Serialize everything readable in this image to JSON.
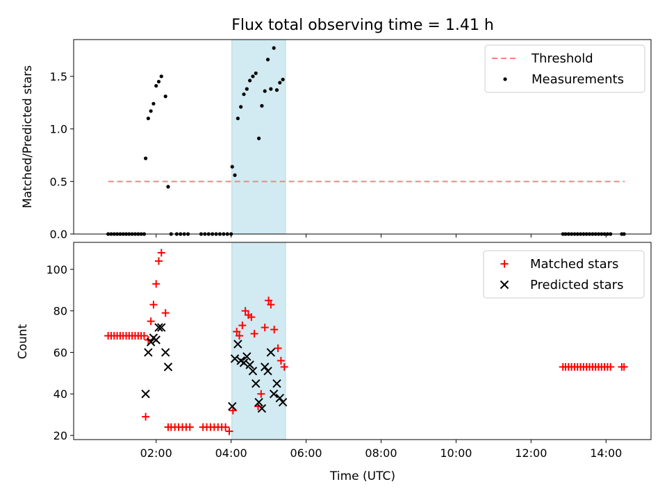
{
  "colors": {
    "threshold": "#ff7f7f",
    "measurements": "#000000",
    "matched": "#ff0000",
    "predicted": "#000000",
    "shade": "#add8e6"
  },
  "chart_data": [
    {
      "type": "scatter",
      "title": "Flux total observing time = 1.41 h",
      "ylabel": "Matched/Predicted stars",
      "ylim": [
        0,
        1.85
      ],
      "yticks": [
        0.0,
        0.5,
        1.0,
        1.5
      ],
      "ytick_labels": [
        "0.0",
        "0.5",
        "1.0",
        "1.5"
      ],
      "shaded_span": {
        "x0": 4.02,
        "x1": 5.45
      },
      "legend": {
        "placement": "top-right",
        "entries": [
          "Threshold",
          "Measurements"
        ]
      },
      "threshold": {
        "name": "Threshold",
        "value": 0.5,
        "x_range": [
          0.72,
          14.5
        ]
      },
      "series": [
        {
          "name": "Measurements",
          "points": [
            [
              0.72,
              0
            ],
            [
              0.8,
              0
            ],
            [
              0.88,
              0
            ],
            [
              0.96,
              0
            ],
            [
              1.04,
              0
            ],
            [
              1.12,
              0
            ],
            [
              1.2,
              0
            ],
            [
              1.28,
              0
            ],
            [
              1.36,
              0
            ],
            [
              1.44,
              0
            ],
            [
              1.52,
              0
            ],
            [
              1.6,
              0
            ],
            [
              1.68,
              0
            ],
            [
              1.72,
              0.72
            ],
            [
              1.79,
              1.1
            ],
            [
              1.86,
              1.17
            ],
            [
              1.93,
              1.24
            ],
            [
              2.0,
              1.41
            ],
            [
              2.07,
              1.45
            ],
            [
              2.14,
              1.5
            ],
            [
              2.25,
              1.31
            ],
            [
              2.32,
              0.45
            ],
            [
              2.4,
              0
            ],
            [
              2.55,
              0
            ],
            [
              2.65,
              0
            ],
            [
              2.75,
              0
            ],
            [
              2.85,
              0
            ],
            [
              3.2,
              0
            ],
            [
              3.3,
              0
            ],
            [
              3.4,
              0
            ],
            [
              3.5,
              0
            ],
            [
              3.6,
              0
            ],
            [
              3.7,
              0
            ],
            [
              3.8,
              0
            ],
            [
              3.9,
              0
            ],
            [
              4.0,
              0
            ],
            [
              4.03,
              0.64
            ],
            [
              4.1,
              0.56
            ],
            [
              4.18,
              1.1
            ],
            [
              4.26,
              1.21
            ],
            [
              4.34,
              1.33
            ],
            [
              4.42,
              1.38
            ],
            [
              4.5,
              1.46
            ],
            [
              4.58,
              1.5
            ],
            [
              4.66,
              1.53
            ],
            [
              4.74,
              0.91
            ],
            [
              4.82,
              1.22
            ],
            [
              4.9,
              1.36
            ],
            [
              4.98,
              1.66
            ],
            [
              5.06,
              1.38
            ],
            [
              5.14,
              1.77
            ],
            [
              5.22,
              1.37
            ],
            [
              5.3,
              1.44
            ],
            [
              5.38,
              1.47
            ],
            [
              12.85,
              0
            ],
            [
              12.92,
              0
            ],
            [
              13.0,
              0
            ],
            [
              13.08,
              0
            ],
            [
              13.16,
              0
            ],
            [
              13.24,
              0
            ],
            [
              13.32,
              0
            ],
            [
              13.4,
              0
            ],
            [
              13.48,
              0
            ],
            [
              13.56,
              0
            ],
            [
              13.64,
              0
            ],
            [
              13.72,
              0
            ],
            [
              13.8,
              0
            ],
            [
              13.88,
              0
            ],
            [
              13.96,
              0
            ],
            [
              14.04,
              0
            ],
            [
              14.12,
              0
            ],
            [
              14.42,
              0
            ],
            [
              14.48,
              0
            ]
          ]
        }
      ]
    },
    {
      "type": "scatter",
      "xlabel": "Time (UTC)",
      "ylabel": "Count",
      "xlim": [
        -0.2,
        15.2
      ],
      "ylim": [
        18,
        113
      ],
      "xticks": [
        2,
        4,
        6,
        8,
        10,
        12,
        14
      ],
      "xtick_labels": [
        "02:00",
        "04:00",
        "06:00",
        "08:00",
        "10:00",
        "12:00",
        "14:00"
      ],
      "yticks": [
        20,
        40,
        60,
        80,
        100
      ],
      "ytick_labels": [
        "20",
        "40",
        "60",
        "80",
        "100"
      ],
      "shaded_span": {
        "x0": 4.02,
        "x1": 5.45
      },
      "legend": {
        "placement": "top-right",
        "entries": [
          "Matched stars",
          "Predicted stars"
        ]
      },
      "series": [
        {
          "name": "Matched stars",
          "marker": "+",
          "points": [
            [
              0.72,
              68
            ],
            [
              0.8,
              68
            ],
            [
              0.88,
              68
            ],
            [
              0.96,
              68
            ],
            [
              1.04,
              68
            ],
            [
              1.12,
              68
            ],
            [
              1.2,
              68
            ],
            [
              1.28,
              68
            ],
            [
              1.36,
              68
            ],
            [
              1.44,
              68
            ],
            [
              1.52,
              68
            ],
            [
              1.6,
              68
            ],
            [
              1.68,
              68
            ],
            [
              1.72,
              29
            ],
            [
              1.79,
              66
            ],
            [
              1.86,
              75
            ],
            [
              1.93,
              83
            ],
            [
              2.0,
              93
            ],
            [
              2.07,
              104
            ],
            [
              2.14,
              108
            ],
            [
              2.25,
              79
            ],
            [
              2.32,
              24
            ],
            [
              2.4,
              24
            ],
            [
              2.5,
              24
            ],
            [
              2.6,
              24
            ],
            [
              2.7,
              24
            ],
            [
              2.8,
              24
            ],
            [
              2.9,
              24
            ],
            [
              3.25,
              24
            ],
            [
              3.35,
              24
            ],
            [
              3.45,
              24
            ],
            [
              3.55,
              24
            ],
            [
              3.65,
              24
            ],
            [
              3.75,
              24
            ],
            [
              3.85,
              24
            ],
            [
              3.95,
              22
            ],
            [
              4.05,
              32
            ],
            [
              4.15,
              70
            ],
            [
              4.22,
              68
            ],
            [
              4.3,
              73
            ],
            [
              4.38,
              80
            ],
            [
              4.46,
              78
            ],
            [
              4.54,
              77
            ],
            [
              4.62,
              69
            ],
            [
              4.72,
              34
            ],
            [
              4.8,
              40
            ],
            [
              4.9,
              72
            ],
            [
              5.0,
              85
            ],
            [
              5.06,
              83
            ],
            [
              5.15,
              71
            ],
            [
              5.25,
              62
            ],
            [
              5.33,
              56
            ],
            [
              5.42,
              53
            ],
            [
              12.85,
              53
            ],
            [
              12.92,
              53
            ],
            [
              13.0,
              53
            ],
            [
              13.08,
              53
            ],
            [
              13.16,
              53
            ],
            [
              13.24,
              53
            ],
            [
              13.32,
              53
            ],
            [
              13.4,
              53
            ],
            [
              13.48,
              53
            ],
            [
              13.56,
              53
            ],
            [
              13.64,
              53
            ],
            [
              13.72,
              53
            ],
            [
              13.8,
              53
            ],
            [
              13.88,
              53
            ],
            [
              13.96,
              53
            ],
            [
              14.04,
              53
            ],
            [
              14.12,
              53
            ],
            [
              14.42,
              53
            ],
            [
              14.48,
              53
            ]
          ]
        },
        {
          "name": "Predicted stars",
          "marker": "x",
          "points": [
            [
              1.72,
              40
            ],
            [
              1.79,
              60
            ],
            [
              1.86,
              65
            ],
            [
              1.93,
              67
            ],
            [
              2.0,
              66
            ],
            [
              2.07,
              72
            ],
            [
              2.14,
              72
            ],
            [
              2.25,
              60
            ],
            [
              2.32,
              53
            ],
            [
              4.03,
              34
            ],
            [
              4.1,
              57
            ],
            [
              4.18,
              64
            ],
            [
              4.26,
              56
            ],
            [
              4.34,
              55
            ],
            [
              4.42,
              58
            ],
            [
              4.5,
              54
            ],
            [
              4.58,
              51
            ],
            [
              4.66,
              45
            ],
            [
              4.74,
              36
            ],
            [
              4.82,
              33
            ],
            [
              4.9,
              53
            ],
            [
              4.98,
              51
            ],
            [
              5.06,
              60
            ],
            [
              5.14,
              40
            ],
            [
              5.22,
              45
            ],
            [
              5.3,
              38
            ],
            [
              5.38,
              36
            ]
          ]
        }
      ]
    }
  ]
}
